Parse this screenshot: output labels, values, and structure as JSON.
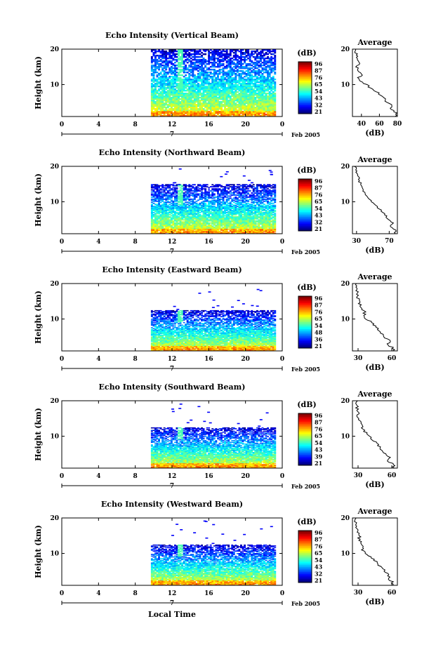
{
  "figure": {
    "xlabel": "Local Time",
    "colorbar_label": "(dB)",
    "date_label": "7",
    "month_label": "Feb 2005"
  },
  "chart_data": [
    {
      "type": "heatmap",
      "title": "Echo Intensity (Vertical Beam)",
      "ylabel": "Height (km)",
      "xlim": [
        0,
        24
      ],
      "ylim": [
        1,
        20
      ],
      "xticks": [
        "0",
        "4",
        "8",
        "12",
        "16",
        "20",
        "0"
      ],
      "yticks": [
        "20",
        "10"
      ],
      "colorbar_ticks": [
        "96",
        "87",
        "76",
        "65",
        "54",
        "43",
        "32",
        "21"
      ],
      "data_start_hour": 9.7,
      "data_top_km": 20,
      "gap_hour": 12.8,
      "average": {
        "title": "Average",
        "xlabel": "(dB)",
        "xticks": [
          "40",
          "60",
          "80"
        ],
        "xlim": [
          30,
          80
        ],
        "ylim": [
          1,
          20
        ],
        "yticks": [
          "20",
          "10"
        ],
        "height": [
          1,
          2,
          3,
          4,
          5,
          6,
          7,
          8,
          9,
          10,
          11,
          12,
          13,
          14,
          15,
          16,
          17,
          18,
          19,
          20
        ],
        "value": [
          78,
          80,
          72,
          75,
          68,
          66,
          62,
          57,
          50,
          46,
          38,
          37,
          41,
          36,
          35,
          38,
          34,
          36,
          33,
          35
        ]
      }
    },
    {
      "type": "heatmap",
      "title": "Echo Intensity (Northward Beam)",
      "ylabel": "Height (km)",
      "xlim": [
        0,
        24
      ],
      "ylim": [
        1,
        20
      ],
      "xticks": [
        "0",
        "4",
        "8",
        "12",
        "16",
        "20",
        "0"
      ],
      "yticks": [
        "20",
        "10"
      ],
      "colorbar_ticks": [
        "96",
        "87",
        "76",
        "65",
        "54",
        "43",
        "32",
        "21"
      ],
      "data_start_hour": 9.7,
      "data_top_km": 15,
      "gap_hour": 12.8,
      "average": {
        "title": "Average",
        "xlabel": "(dB)",
        "xticks": [
          "30",
          "70"
        ],
        "xlim": [
          25,
          80
        ],
        "ylim": [
          1,
          20
        ],
        "yticks": [
          "20",
          "10"
        ],
        "height": [
          1,
          2,
          3,
          4,
          5,
          6,
          7,
          8,
          9,
          10,
          11,
          12,
          13,
          14,
          15,
          16,
          17,
          18,
          19,
          20
        ],
        "value": [
          78,
          77,
          72,
          74,
          68,
          66,
          63,
          58,
          54,
          49,
          45,
          42,
          39,
          37,
          35,
          33,
          32,
          30,
          29,
          28
        ]
      }
    },
    {
      "type": "heatmap",
      "title": "Echo Intensity (Eastward Beam)",
      "ylabel": "Height (km)",
      "xlim": [
        0,
        24
      ],
      "ylim": [
        1,
        20
      ],
      "xticks": [
        "0",
        "4",
        "8",
        "12",
        "16",
        "20",
        "0"
      ],
      "yticks": [
        "20",
        "10"
      ],
      "colorbar_ticks": [
        "96",
        "87",
        "76",
        "65",
        "54",
        "48",
        "36",
        "21"
      ],
      "data_start_hour": 9.7,
      "data_top_km": 12.5,
      "gap_hour": 12.8,
      "average": {
        "title": "Average",
        "xlabel": "(dB)",
        "xticks": [
          "30",
          "60"
        ],
        "xlim": [
          25,
          65
        ],
        "ylim": [
          1,
          20
        ],
        "yticks": [
          "20",
          "10"
        ],
        "height": [
          1,
          2,
          3,
          4,
          5,
          6,
          7,
          8,
          9,
          10,
          11,
          12,
          13,
          14,
          15,
          16,
          17,
          18,
          19,
          20
        ],
        "value": [
          62,
          60,
          57,
          58,
          53,
          51,
          48,
          45,
          42,
          38,
          35,
          36,
          33,
          32,
          31,
          30,
          30,
          29,
          28,
          28
        ]
      }
    },
    {
      "type": "heatmap",
      "title": "Echo Intensity (Southward Beam)",
      "ylabel": "Height (km)",
      "xlim": [
        0,
        24
      ],
      "ylim": [
        1,
        20
      ],
      "xticks": [
        "0",
        "4",
        "8",
        "12",
        "16",
        "20",
        "0"
      ],
      "yticks": [
        "20",
        "10"
      ],
      "colorbar_ticks": [
        "96",
        "87",
        "76",
        "65",
        "54",
        "43",
        "39",
        "21"
      ],
      "data_start_hour": 9.7,
      "data_top_km": 12.5,
      "gap_hour": 12.8,
      "average": {
        "title": "Average",
        "xlabel": "(dB)",
        "xticks": [
          "30",
          "60"
        ],
        "xlim": [
          25,
          65
        ],
        "ylim": [
          1,
          20
        ],
        "yticks": [
          "20",
          "10"
        ],
        "height": [
          1,
          2,
          3,
          4,
          5,
          6,
          7,
          8,
          9,
          10,
          11,
          12,
          13,
          14,
          15,
          16,
          17,
          18,
          19,
          20
        ],
        "value": [
          62,
          61,
          57,
          58,
          54,
          52,
          49,
          46,
          43,
          40,
          37,
          35,
          33,
          32,
          31,
          30,
          30,
          29,
          29,
          28
        ]
      }
    },
    {
      "type": "heatmap",
      "title": "Echo Intensity (Westward Beam)",
      "ylabel": "Height (km)",
      "xlim": [
        0,
        24
      ],
      "ylim": [
        1,
        20
      ],
      "xticks": [
        "0",
        "4",
        "8",
        "12",
        "16",
        "20",
        "0"
      ],
      "yticks": [
        "20",
        "10"
      ],
      "colorbar_ticks": [
        "96",
        "87",
        "76",
        "65",
        "54",
        "43",
        "32",
        "21"
      ],
      "data_start_hour": 9.7,
      "data_top_km": 12.5,
      "gap_hour": 12.8,
      "average": {
        "title": "Average",
        "xlabel": "(dB)",
        "xticks": [
          "30",
          "60"
        ],
        "xlim": [
          25,
          65
        ],
        "ylim": [
          1,
          20
        ],
        "yticks": [
          "20",
          "10"
        ],
        "height": [
          1,
          2,
          3,
          4,
          5,
          6,
          7,
          8,
          9,
          10,
          11,
          12,
          13,
          14,
          15,
          16,
          17,
          18,
          19,
          20
        ],
        "value": [
          62,
          60,
          57,
          58,
          54,
          51,
          48,
          45,
          41,
          37,
          34,
          36,
          32,
          31,
          31,
          30,
          29,
          29,
          28,
          28
        ]
      }
    }
  ]
}
